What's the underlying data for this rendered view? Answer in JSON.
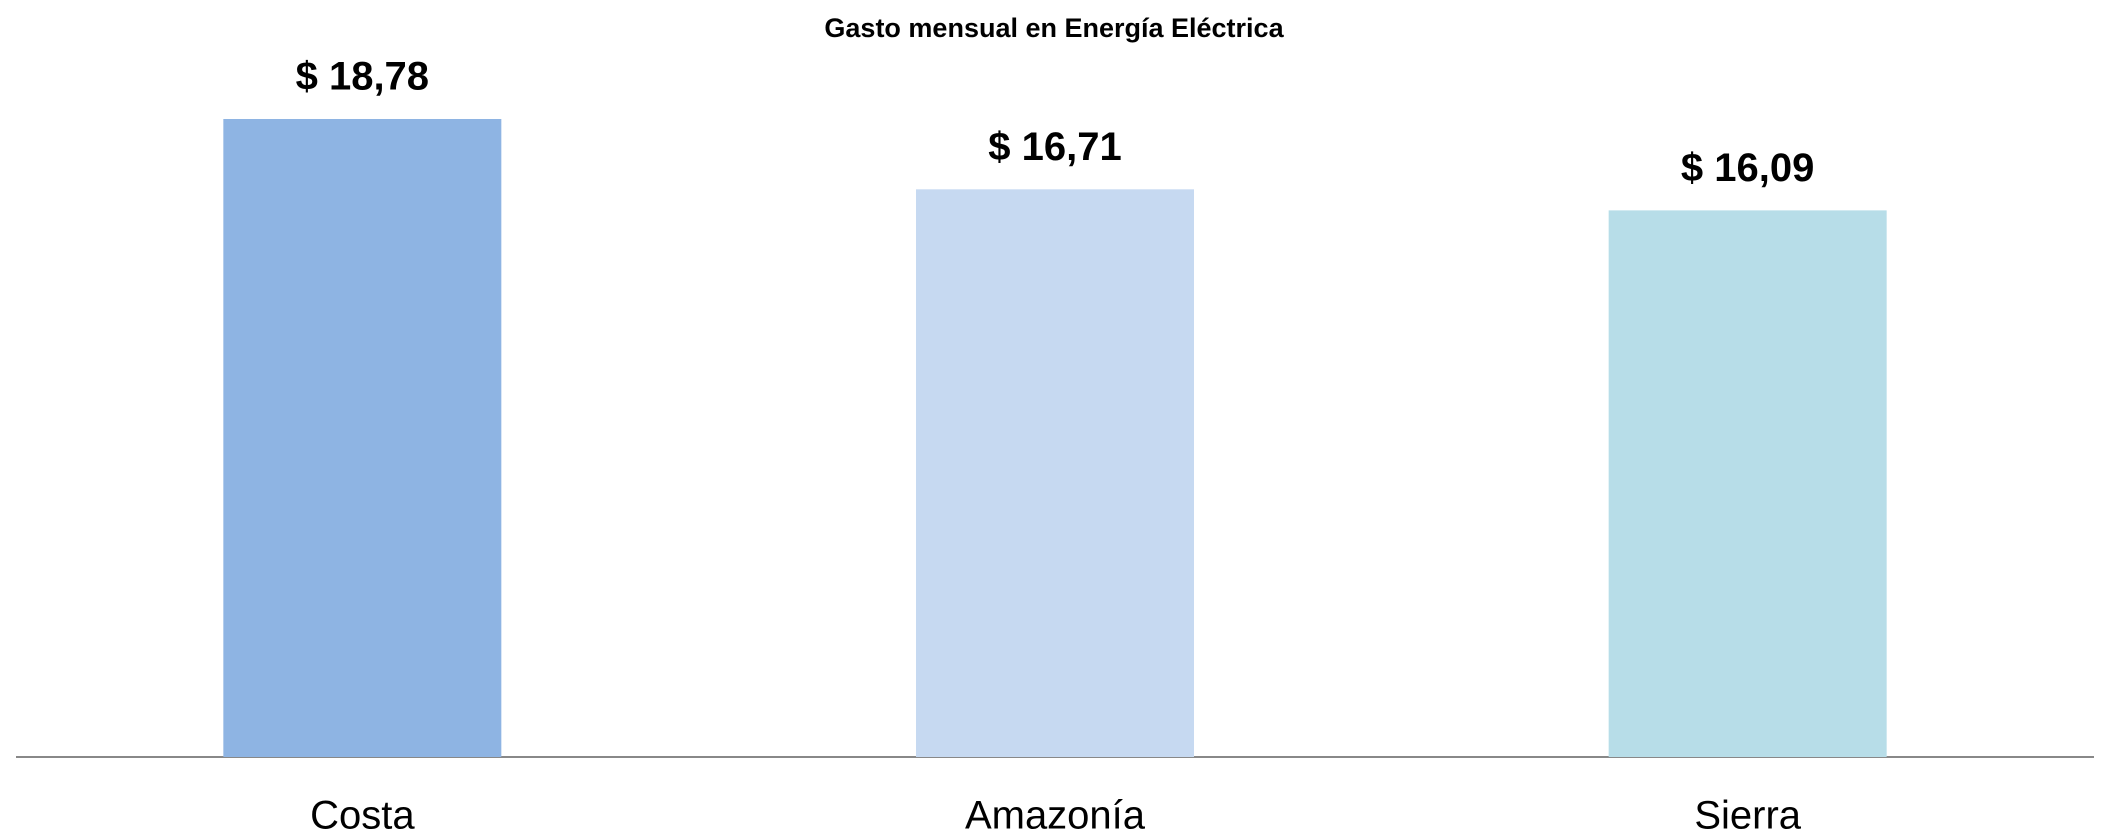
{
  "chart_data": {
    "type": "bar",
    "title": "Gasto mensual en Energía Eléctrica",
    "categories": [
      "Costa",
      "Amazonía",
      "Sierra"
    ],
    "values": [
      18.78,
      16.71,
      16.09
    ],
    "value_labels": [
      "$ 18,78",
      "$ 16,71",
      "$ 16,09"
    ],
    "colors": [
      "#8eb4e3",
      "#c6d9f1",
      "#b7dde8"
    ],
    "grid": false
  }
}
